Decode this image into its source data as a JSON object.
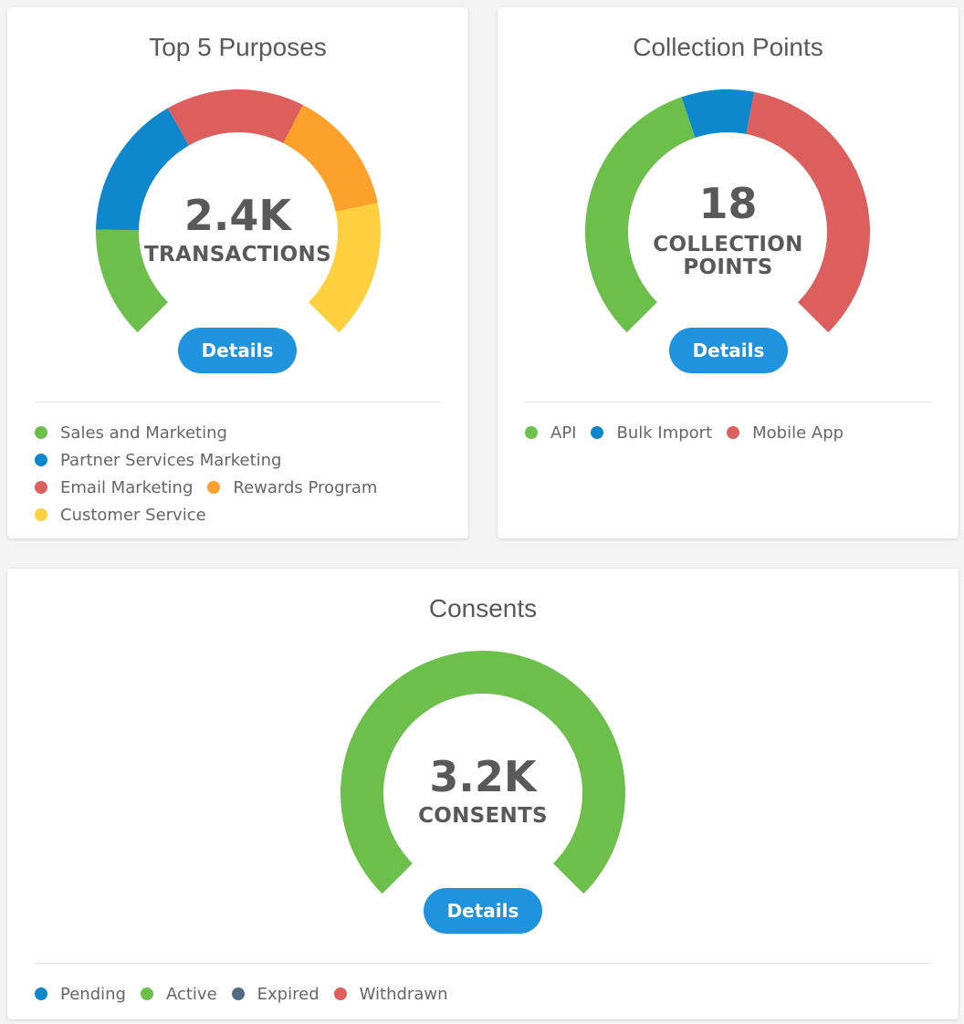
{
  "colors": {
    "green": "#6dbf4b",
    "blue": "#0f87cc",
    "red": "#dc5f5e",
    "orange": "#fca12b",
    "yellow": "#fed040",
    "slate": "#536b82",
    "button": "#1f93de"
  },
  "purposes": {
    "title": "Top 5 Purposes",
    "value": "2.4K",
    "unit": "TRANSACTIONS",
    "details_label": "Details",
    "legend": [
      {
        "label": "Sales and Marketing",
        "color": "#6dbf4b"
      },
      {
        "label": "Partner Services Marketing",
        "color": "#0f87cc"
      },
      {
        "label": "Email Marketing",
        "color": "#dc5f5e"
      },
      {
        "label": "Rewards Program",
        "color": "#fca12b"
      },
      {
        "label": "Customer Service",
        "color": "#fed040"
      }
    ],
    "chart_data": {
      "type": "pie",
      "style": "gauge-donut",
      "categories": [
        "Sales and Marketing",
        "Partner Services Marketing",
        "Email Marketing",
        "Rewards Program",
        "Customer Service"
      ],
      "values": [
        17,
        22,
        21,
        19,
        21
      ],
      "colors": [
        "#6dbf4b",
        "#0f87cc",
        "#dc5f5e",
        "#fca12b",
        "#fed040"
      ]
    }
  },
  "collection": {
    "title": "Collection Points",
    "value": "18",
    "unit_line1": "COLLECTION",
    "unit_line2": "POINTS",
    "details_label": "Details",
    "legend": [
      {
        "label": "API",
        "color": "#6dbf4b"
      },
      {
        "label": "Bulk Import",
        "color": "#0f87cc"
      },
      {
        "label": "Mobile App",
        "color": "#dc5f5e"
      }
    ],
    "chart_data": {
      "type": "pie",
      "style": "gauge-donut",
      "categories": [
        "API",
        "Bulk Import",
        "Mobile App"
      ],
      "values": [
        43,
        11,
        46
      ],
      "colors": [
        "#6dbf4b",
        "#0f87cc",
        "#dc5f5e"
      ]
    }
  },
  "consents": {
    "title": "Consents",
    "value": "3.2K",
    "unit": "CONSENTS",
    "details_label": "Details",
    "legend": [
      {
        "label": "Pending",
        "color": "#0f87cc"
      },
      {
        "label": "Active",
        "color": "#6dbf4b"
      },
      {
        "label": "Expired",
        "color": "#536b82"
      },
      {
        "label": "Withdrawn",
        "color": "#dc5f5e"
      }
    ],
    "chart_data": {
      "type": "pie",
      "style": "gauge-donut",
      "categories": [
        "Pending",
        "Active",
        "Expired",
        "Withdrawn"
      ],
      "values": [
        0,
        100,
        0,
        0
      ],
      "colors": [
        "#0f87cc",
        "#6dbf4b",
        "#536b82",
        "#dc5f5e"
      ]
    }
  }
}
